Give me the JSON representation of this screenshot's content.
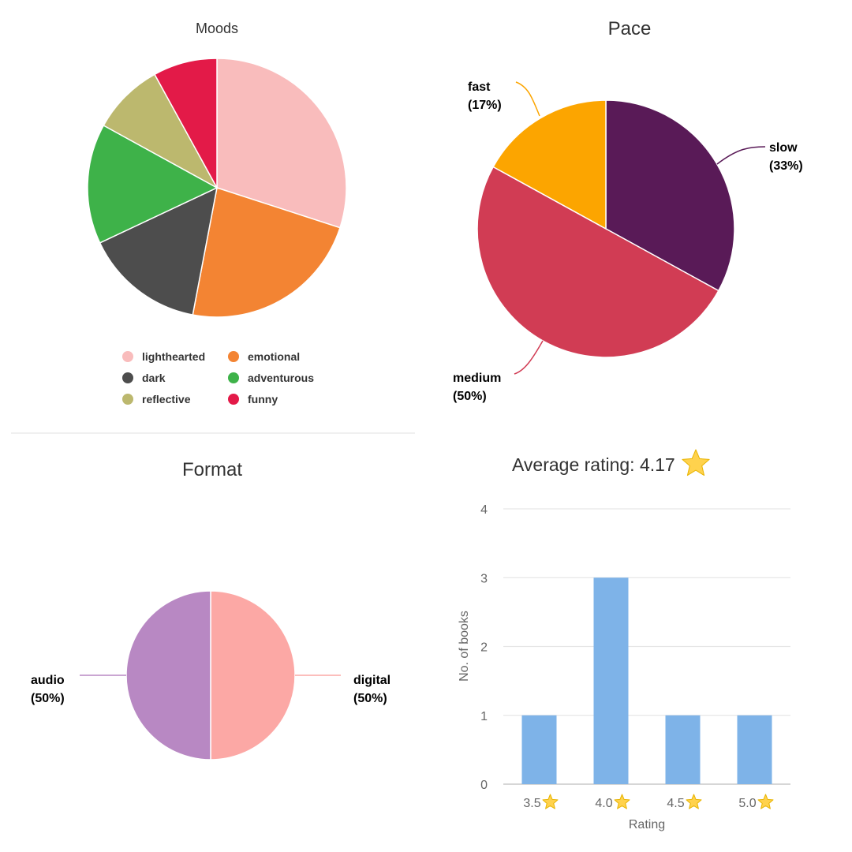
{
  "colors": {
    "star": "#ffd24d",
    "star_stroke": "#e8b400",
    "bar": "#7eb3e8",
    "grid": "#e6e6e6"
  },
  "chart_data": [
    {
      "id": "moods",
      "type": "pie",
      "title": "Moods",
      "slices": [
        {
          "label": "lighthearted",
          "value": 30,
          "color": "#f9bcbc"
        },
        {
          "label": "emotional",
          "value": 23,
          "color": "#f38433"
        },
        {
          "label": "dark",
          "value": 15,
          "color": "#4d4d4d"
        },
        {
          "label": "adventurous",
          "value": 15,
          "color": "#3eb249"
        },
        {
          "label": "reflective",
          "value": 9,
          "color": "#bcb86e"
        },
        {
          "label": "funny",
          "value": 8,
          "color": "#e31a48"
        }
      ],
      "legend": "bottom"
    },
    {
      "id": "pace",
      "type": "pie",
      "title": "Pace",
      "slices": [
        {
          "label": "slow",
          "pct_label": "(33%)",
          "value": 33,
          "color": "#591a57"
        },
        {
          "label": "medium",
          "pct_label": "(50%)",
          "value": 50,
          "color": "#d13c54"
        },
        {
          "label": "fast",
          "pct_label": "(17%)",
          "value": 17,
          "color": "#fca500"
        }
      ]
    },
    {
      "id": "format",
      "type": "pie",
      "title": "Format",
      "slices": [
        {
          "label": "digital",
          "pct_label": "(50%)",
          "value": 50,
          "color": "#fca8a5"
        },
        {
          "label": "audio",
          "pct_label": "(50%)",
          "value": 50,
          "color": "#b888c3"
        }
      ]
    },
    {
      "id": "rating",
      "type": "bar",
      "title": "Average rating: 4.17",
      "categories": [
        "3.5",
        "4.0",
        "4.5",
        "5.0"
      ],
      "values": [
        1,
        3,
        1,
        1
      ],
      "xlabel": "Rating",
      "ylabel": "No. of books",
      "ylim": [
        0,
        4
      ],
      "yticks": [
        "0",
        "1",
        "2",
        "3",
        "4"
      ],
      "grid": true
    }
  ]
}
